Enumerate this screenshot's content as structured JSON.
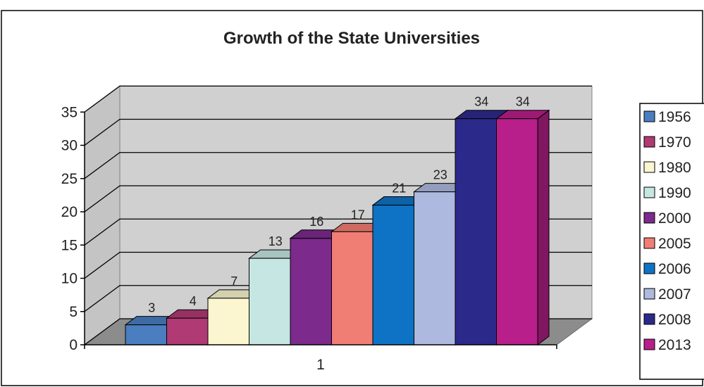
{
  "chart_data": {
    "type": "bar",
    "title": "Growth of the State Universities",
    "xlabel": "",
    "ylabel": "",
    "categories": [
      "1"
    ],
    "ylim": [
      0,
      35
    ],
    "yticks": [
      0,
      5,
      10,
      15,
      20,
      25,
      30,
      35
    ],
    "grid": true,
    "legend_position": "right",
    "series": [
      {
        "name": "1956",
        "values": [
          3
        ],
        "color": "#4A7EC0"
      },
      {
        "name": "1970",
        "values": [
          4
        ],
        "color": "#B03A73"
      },
      {
        "name": "1980",
        "values": [
          7
        ],
        "color": "#FBF6CF"
      },
      {
        "name": "1990",
        "values": [
          13
        ],
        "color": "#C5E6E2"
      },
      {
        "name": "2000",
        "values": [
          16
        ],
        "color": "#7C2A8C"
      },
      {
        "name": "2005",
        "values": [
          17
        ],
        "color": "#F17E74"
      },
      {
        "name": "2006",
        "values": [
          21
        ],
        "color": "#0E73C4"
      },
      {
        "name": "2007",
        "values": [
          23
        ],
        "color": "#ADB9DE"
      },
      {
        "name": "2008",
        "values": [
          34
        ],
        "color": "#2B2A8A"
      },
      {
        "name": "2013",
        "values": [
          34
        ],
        "color": "#B81F8A"
      }
    ]
  }
}
